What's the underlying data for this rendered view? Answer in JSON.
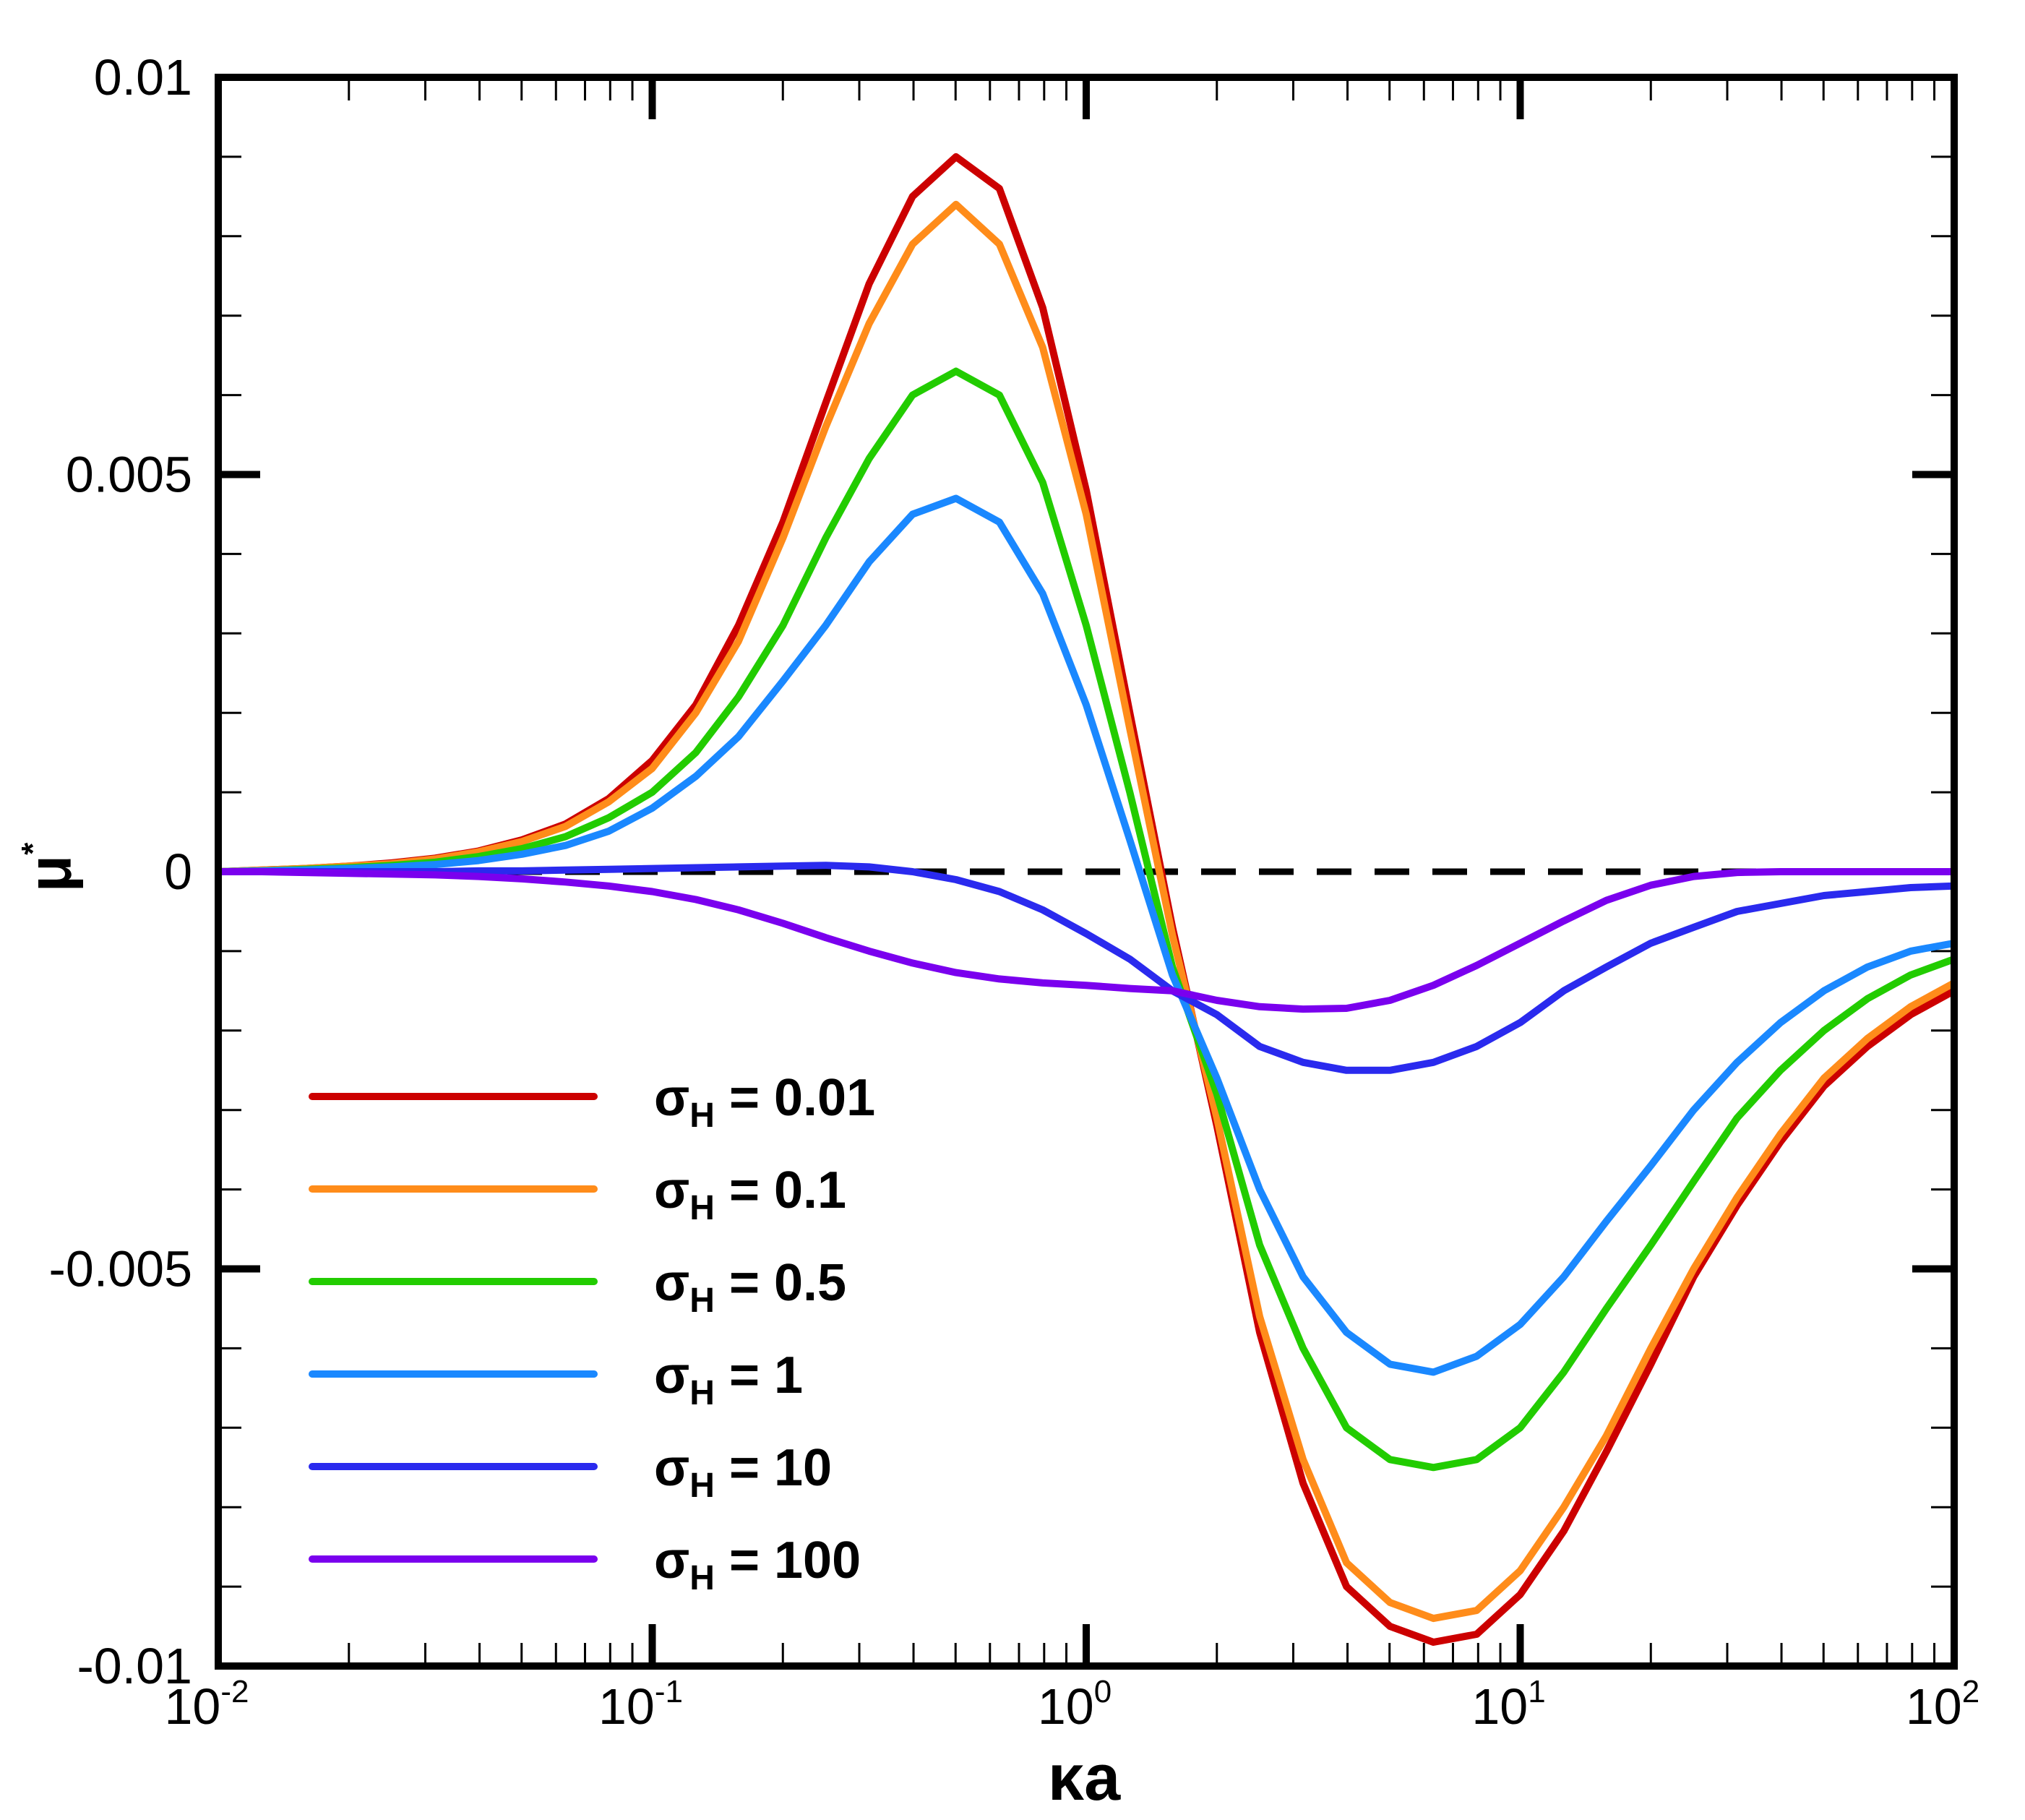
{
  "chart_data": {
    "type": "line",
    "title": "",
    "xlabel": {
      "symbol": "κ",
      "rest": "a"
    },
    "ylabel": {
      "symbol": "μ",
      "sup": "*"
    },
    "xscale": "log",
    "xlim": [
      0.01,
      100
    ],
    "ylim": [
      -0.01,
      0.01
    ],
    "x_tick_labels": [
      {
        "base": "10",
        "exp": "-2"
      },
      {
        "base": "10",
        "exp": "-1"
      },
      {
        "base": "10",
        "exp": "0"
      },
      {
        "base": "10",
        "exp": "1"
      },
      {
        "base": "10",
        "exp": "2"
      }
    ],
    "y_tick_labels": [
      "0.01",
      "0.005",
      "0",
      "-0.005",
      "-0.01"
    ],
    "y_tick_values": [
      0.01,
      0.005,
      0,
      -0.005,
      -0.01
    ],
    "zero_line": "dashed",
    "legend_position": "lower-left",
    "x": [
      0.01,
      0.0126,
      0.0158,
      0.02,
      0.0251,
      0.0316,
      0.0398,
      0.0501,
      0.0631,
      0.0794,
      0.1,
      0.126,
      0.158,
      0.2,
      0.251,
      0.316,
      0.398,
      0.501,
      0.631,
      0.794,
      1.0,
      1.26,
      1.58,
      2.0,
      2.51,
      3.16,
      3.98,
      5.01,
      6.31,
      7.94,
      10.0,
      12.6,
      15.8,
      20.0,
      25.1,
      31.6,
      39.8,
      50.1,
      63.1,
      79.4,
      100.0
    ],
    "series": [
      {
        "name": "0.01",
        "label_symbol": "σ",
        "label_sub": "H",
        "label_rest": " = 0.01",
        "color": "#cc0000",
        "values": [
          0.0,
          2e-05,
          4e-05,
          7e-05,
          0.00011,
          0.00017,
          0.00026,
          0.0004,
          0.0006,
          0.00092,
          0.0014,
          0.0021,
          0.0031,
          0.0044,
          0.0059,
          0.0074,
          0.0085,
          0.009,
          0.0086,
          0.0071,
          0.0048,
          0.002,
          -0.0007,
          -0.0032,
          -0.0058,
          -0.0077,
          -0.009,
          -0.0095,
          -0.0097,
          -0.0096,
          -0.0091,
          -0.0083,
          -0.0073,
          -0.0062,
          -0.0051,
          -0.0042,
          -0.0034,
          -0.0027,
          -0.0022,
          -0.0018,
          -0.0015
        ]
      },
      {
        "name": "0.1",
        "label_symbol": "σ",
        "label_sub": "H",
        "label_rest": " = 0.1",
        "color": "#ff8c1a",
        "values": [
          0.0,
          2e-05,
          4e-05,
          7e-05,
          0.0001,
          0.00016,
          0.00025,
          0.00038,
          0.00057,
          0.00088,
          0.0013,
          0.002,
          0.0029,
          0.0042,
          0.0056,
          0.0069,
          0.0079,
          0.0084,
          0.0079,
          0.0066,
          0.0045,
          0.0018,
          -0.0008,
          -0.0031,
          -0.0056,
          -0.0074,
          -0.0087,
          -0.0092,
          -0.0094,
          -0.0093,
          -0.0088,
          -0.008,
          -0.0071,
          -0.006,
          -0.005,
          -0.0041,
          -0.0033,
          -0.0026,
          -0.0021,
          -0.0017,
          -0.0014
        ]
      },
      {
        "name": "0.5",
        "label_symbol": "σ",
        "label_sub": "H",
        "label_rest": " = 0.5",
        "color": "#22cc00",
        "values": [
          0.0,
          1e-05,
          3e-05,
          5e-05,
          8e-05,
          0.00012,
          0.00019,
          0.00029,
          0.00044,
          0.00068,
          0.001,
          0.0015,
          0.0022,
          0.0031,
          0.0042,
          0.0052,
          0.006,
          0.0063,
          0.006,
          0.0049,
          0.0031,
          0.001,
          -0.0012,
          -0.0028,
          -0.0047,
          -0.006,
          -0.007,
          -0.0074,
          -0.0075,
          -0.0074,
          -0.007,
          -0.0063,
          -0.0055,
          -0.0047,
          -0.0039,
          -0.0031,
          -0.0025,
          -0.002,
          -0.0016,
          -0.0013,
          -0.0011
        ]
      },
      {
        "name": "1",
        "label_symbol": "σ",
        "label_sub": "H",
        "label_rest": " = 1",
        "color": "#1a88ff",
        "values": [
          0.0,
          1e-05,
          2e-05,
          4e-05,
          6e-05,
          9e-05,
          0.00014,
          0.00022,
          0.00033,
          0.00051,
          0.0008,
          0.0012,
          0.0017,
          0.0024,
          0.0031,
          0.0039,
          0.0045,
          0.0047,
          0.0044,
          0.0035,
          0.0021,
          0.0004,
          -0.0013,
          -0.0026,
          -0.004,
          -0.0051,
          -0.0058,
          -0.0062,
          -0.0063,
          -0.0061,
          -0.0057,
          -0.0051,
          -0.0044,
          -0.0037,
          -0.003,
          -0.0024,
          -0.0019,
          -0.0015,
          -0.0012,
          -0.001,
          -0.0009
        ]
      },
      {
        "name": "10",
        "label_symbol": "σ",
        "label_sub": "H",
        "label_rest": " = 10",
        "color": "#2a2aee",
        "values": [
          0.0,
          0.0,
          0.0,
          0.0,
          0.0,
          0.0,
          1e-05,
          1e-05,
          2e-05,
          3e-05,
          4e-05,
          5e-05,
          6e-05,
          7e-05,
          8e-05,
          6e-05,
          0.0,
          -0.0001,
          -0.00025,
          -0.00048,
          -0.00078,
          -0.0011,
          -0.0015,
          -0.0018,
          -0.0022,
          -0.0024,
          -0.0025,
          -0.0025,
          -0.0024,
          -0.0022,
          -0.0019,
          -0.0015,
          -0.0012,
          -0.0009,
          -0.0007,
          -0.0005,
          -0.0004,
          -0.0003,
          -0.00025,
          -0.0002,
          -0.00018
        ]
      },
      {
        "name": "100",
        "label_symbol": "σ",
        "label_sub": "H",
        "label_rest": " = 100",
        "color": "#7a00ee",
        "values": [
          0.0,
          0.0,
          -1e-05,
          -2e-05,
          -3e-05,
          -4e-05,
          -6e-05,
          -9e-05,
          -0.00013,
          -0.00018,
          -0.00025,
          -0.00035,
          -0.00048,
          -0.00065,
          -0.00083,
          -0.001,
          -0.00115,
          -0.00127,
          -0.00135,
          -0.0014,
          -0.00143,
          -0.00147,
          -0.0015,
          -0.00162,
          -0.0017,
          -0.00173,
          -0.00172,
          -0.00162,
          -0.00143,
          -0.00118,
          -0.0009,
          -0.00062,
          -0.00036,
          -0.00017,
          -6e-05,
          -1e-05,
          0.0,
          0.0,
          0.0,
          0.0,
          0.0
        ]
      }
    ]
  }
}
